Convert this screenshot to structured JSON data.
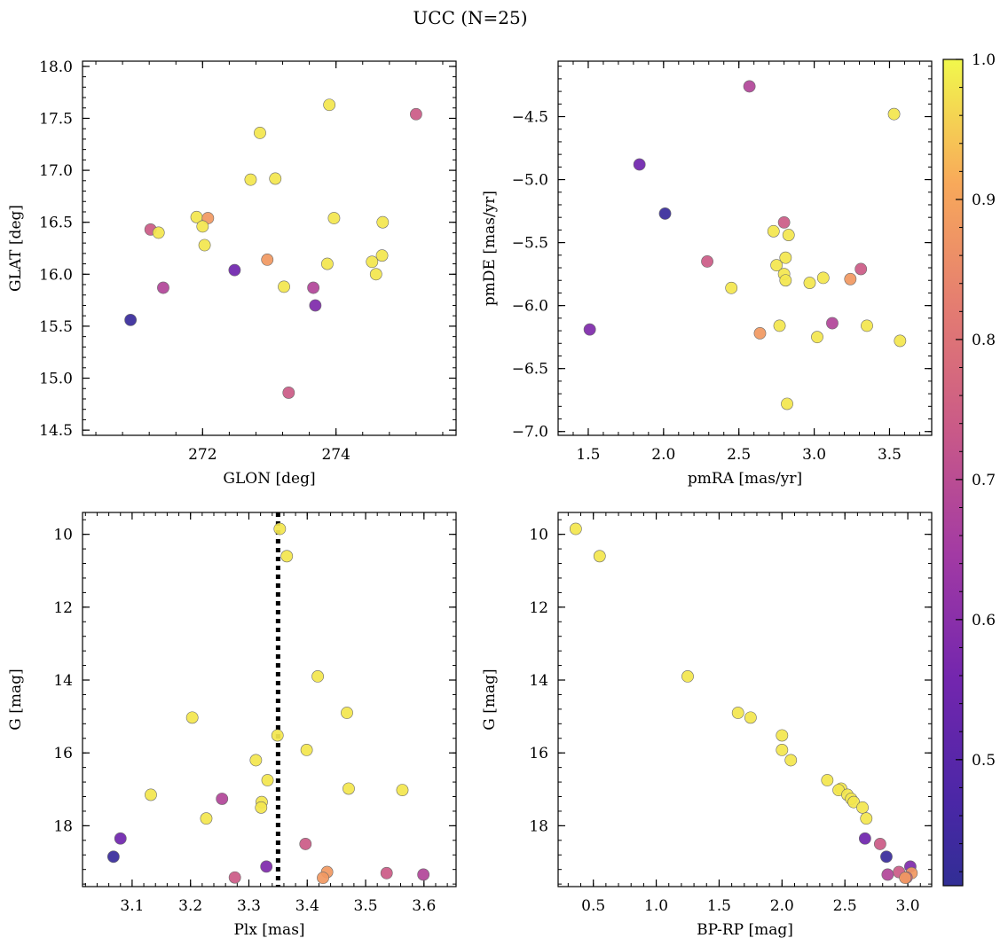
{
  "figure": {
    "title": "UCC (N=25)"
  },
  "colorbar": {
    "min": 0.41,
    "max": 1.0,
    "ticks": [
      0.5,
      0.6,
      0.7,
      0.8,
      0.9,
      1.0
    ],
    "tick_labels": [
      "0.5",
      "0.6",
      "0.7",
      "0.8",
      "0.9",
      "1.0"
    ],
    "colormap": "plasma"
  },
  "chart_data": [
    {
      "type": "scatter",
      "panel": "top-left",
      "xlabel": "GLON [deg]",
      "ylabel": "GLAT [deg]",
      "xlim": [
        270.2,
        275.8
      ],
      "ylim": [
        14.45,
        18.05
      ],
      "xticks": [
        272,
        274
      ],
      "xtick_labels": [
        "272",
        "274"
      ],
      "yticks": [
        14.5,
        15.0,
        15.5,
        16.0,
        16.5,
        17.0,
        17.5,
        18.0
      ],
      "ytick_labels": [
        "14.5",
        "15.0",
        "15.5",
        "16.0",
        "16.5",
        "17.0",
        "17.5",
        "18.0"
      ],
      "points": [
        {
          "x": 273.9,
          "y": 17.63,
          "c": 0.98
        },
        {
          "x": 275.2,
          "y": 17.54,
          "c": 0.74
        },
        {
          "x": 272.86,
          "y": 17.36,
          "c": 0.98
        },
        {
          "x": 272.72,
          "y": 16.91,
          "c": 0.98
        },
        {
          "x": 273.09,
          "y": 16.92,
          "c": 0.98
        },
        {
          "x": 271.91,
          "y": 16.55,
          "c": 0.98
        },
        {
          "x": 272.08,
          "y": 16.54,
          "c": 0.88
        },
        {
          "x": 273.97,
          "y": 16.54,
          "c": 0.98
        },
        {
          "x": 274.7,
          "y": 16.5,
          "c": 0.98
        },
        {
          "x": 272.0,
          "y": 16.46,
          "c": 0.98
        },
        {
          "x": 271.22,
          "y": 16.43,
          "c": 0.74
        },
        {
          "x": 271.34,
          "y": 16.4,
          "c": 0.98
        },
        {
          "x": 272.03,
          "y": 16.28,
          "c": 0.98
        },
        {
          "x": 274.69,
          "y": 16.18,
          "c": 0.98
        },
        {
          "x": 272.97,
          "y": 16.14,
          "c": 0.88
        },
        {
          "x": 274.54,
          "y": 16.12,
          "c": 0.98
        },
        {
          "x": 273.87,
          "y": 16.1,
          "c": 0.98
        },
        {
          "x": 272.48,
          "y": 16.04,
          "c": 0.55
        },
        {
          "x": 274.6,
          "y": 16.0,
          "c": 0.98
        },
        {
          "x": 273.22,
          "y": 15.88,
          "c": 0.98
        },
        {
          "x": 271.41,
          "y": 15.87,
          "c": 0.68
        },
        {
          "x": 273.66,
          "y": 15.87,
          "c": 0.68
        },
        {
          "x": 273.69,
          "y": 15.7,
          "c": 0.58
        },
        {
          "x": 270.92,
          "y": 15.56,
          "c": 0.43
        },
        {
          "x": 273.29,
          "y": 14.86,
          "c": 0.74
        }
      ]
    },
    {
      "type": "scatter",
      "panel": "top-right",
      "xlabel": "pmRA [mas/yr]",
      "ylabel": "pmDE [mas/yr]",
      "xlim": [
        1.3,
        3.78
      ],
      "ylim": [
        -7.03,
        -4.06
      ],
      "xticks": [
        1.5,
        2.0,
        2.5,
        3.0,
        3.5
      ],
      "xtick_labels": [
        "1.5",
        "2.0",
        "2.5",
        "3.0",
        "3.5"
      ],
      "yticks": [
        -7.0,
        -6.5,
        -6.0,
        -5.5,
        -5.0,
        -4.5
      ],
      "ytick_labels": [
        "−7.0",
        "−6.5",
        "−6.0",
        "−5.5",
        "−5.0",
        "−4.5"
      ],
      "points": [
        {
          "x": 2.57,
          "y": -4.26,
          "c": 0.68
        },
        {
          "x": 3.53,
          "y": -4.48,
          "c": 0.98
        },
        {
          "x": 1.84,
          "y": -4.88,
          "c": 0.55
        },
        {
          "x": 2.01,
          "y": -5.27,
          "c": 0.43
        },
        {
          "x": 2.8,
          "y": -5.34,
          "c": 0.74
        },
        {
          "x": 2.73,
          "y": -5.41,
          "c": 0.98
        },
        {
          "x": 2.83,
          "y": -5.44,
          "c": 0.98
        },
        {
          "x": 2.81,
          "y": -5.62,
          "c": 0.98
        },
        {
          "x": 2.29,
          "y": -5.65,
          "c": 0.74
        },
        {
          "x": 2.75,
          "y": -5.68,
          "c": 0.98
        },
        {
          "x": 3.31,
          "y": -5.71,
          "c": 0.74
        },
        {
          "x": 2.8,
          "y": -5.75,
          "c": 0.98
        },
        {
          "x": 3.06,
          "y": -5.78,
          "c": 0.98
        },
        {
          "x": 3.24,
          "y": -5.79,
          "c": 0.88
        },
        {
          "x": 2.81,
          "y": -5.8,
          "c": 0.98
        },
        {
          "x": 2.97,
          "y": -5.82,
          "c": 0.98
        },
        {
          "x": 2.45,
          "y": -5.86,
          "c": 0.98
        },
        {
          "x": 3.12,
          "y": -6.14,
          "c": 0.68
        },
        {
          "x": 2.77,
          "y": -6.16,
          "c": 0.98
        },
        {
          "x": 3.35,
          "y": -6.16,
          "c": 0.98
        },
        {
          "x": 1.51,
          "y": -6.19,
          "c": 0.58
        },
        {
          "x": 2.64,
          "y": -6.22,
          "c": 0.88
        },
        {
          "x": 3.02,
          "y": -6.25,
          "c": 0.98
        },
        {
          "x": 3.57,
          "y": -6.28,
          "c": 0.98
        },
        {
          "x": 2.82,
          "y": -6.78,
          "c": 0.98
        }
      ]
    },
    {
      "type": "scatter",
      "panel": "bottom-left",
      "xlabel": "Plx [mas]",
      "ylabel": "G [mag]",
      "xlim": [
        3.015,
        3.655
      ],
      "ylim": [
        19.67,
        9.4
      ],
      "y_inverted": true,
      "xticks": [
        3.1,
        3.2,
        3.3,
        3.4,
        3.5,
        3.6
      ],
      "xtick_labels": [
        "3.1",
        "3.2",
        "3.3",
        "3.4",
        "3.5",
        "3.6"
      ],
      "yticks": [
        10,
        12,
        14,
        16,
        18
      ],
      "ytick_labels": [
        "10",
        "12",
        "14",
        "16",
        "18"
      ],
      "vline": {
        "x": 3.35,
        "style": "dotted"
      },
      "points": [
        {
          "x": 3.353,
          "y": 9.85,
          "c": 0.98
        },
        {
          "x": 3.365,
          "y": 10.6,
          "c": 0.98
        },
        {
          "x": 3.418,
          "y": 13.9,
          "c": 0.98
        },
        {
          "x": 3.468,
          "y": 14.9,
          "c": 0.98
        },
        {
          "x": 3.203,
          "y": 15.03,
          "c": 0.98
        },
        {
          "x": 3.349,
          "y": 15.52,
          "c": 0.98
        },
        {
          "x": 3.399,
          "y": 15.92,
          "c": 0.98
        },
        {
          "x": 3.312,
          "y": 16.2,
          "c": 0.98
        },
        {
          "x": 3.332,
          "y": 16.75,
          "c": 0.98
        },
        {
          "x": 3.471,
          "y": 16.98,
          "c": 0.98
        },
        {
          "x": 3.563,
          "y": 17.02,
          "c": 0.98
        },
        {
          "x": 3.132,
          "y": 17.15,
          "c": 0.98
        },
        {
          "x": 3.254,
          "y": 17.26,
          "c": 0.68
        },
        {
          "x": 3.322,
          "y": 17.35,
          "c": 0.98
        },
        {
          "x": 3.321,
          "y": 17.5,
          "c": 0.98
        },
        {
          "x": 3.227,
          "y": 17.8,
          "c": 0.98
        },
        {
          "x": 3.08,
          "y": 18.35,
          "c": 0.55
        },
        {
          "x": 3.397,
          "y": 18.5,
          "c": 0.74
        },
        {
          "x": 3.068,
          "y": 18.85,
          "c": 0.43
        },
        {
          "x": 3.33,
          "y": 19.12,
          "c": 0.58
        },
        {
          "x": 3.434,
          "y": 19.27,
          "c": 0.88
        },
        {
          "x": 3.536,
          "y": 19.3,
          "c": 0.74
        },
        {
          "x": 3.599,
          "y": 19.34,
          "c": 0.68
        },
        {
          "x": 3.276,
          "y": 19.42,
          "c": 0.74
        },
        {
          "x": 3.427,
          "y": 19.43,
          "c": 0.88
        }
      ]
    },
    {
      "type": "scatter",
      "panel": "bottom-right",
      "xlabel": "BP-RP [mag]",
      "ylabel": "G [mag]",
      "xlim": [
        0.22,
        3.19
      ],
      "ylim": [
        19.67,
        9.4
      ],
      "y_inverted": true,
      "xticks": [
        0.5,
        1.0,
        1.5,
        2.0,
        2.5,
        3.0
      ],
      "xtick_labels": [
        "0.5",
        "1.0",
        "1.5",
        "2.0",
        "2.5",
        "3.0"
      ],
      "yticks": [
        10,
        12,
        14,
        16,
        18
      ],
      "ytick_labels": [
        "10",
        "12",
        "14",
        "16",
        "18"
      ],
      "points": [
        {
          "x": 0.36,
          "y": 9.85,
          "c": 0.98
        },
        {
          "x": 0.55,
          "y": 10.6,
          "c": 0.98
        },
        {
          "x": 1.25,
          "y": 13.9,
          "c": 0.98
        },
        {
          "x": 1.65,
          "y": 14.9,
          "c": 0.98
        },
        {
          "x": 1.75,
          "y": 15.03,
          "c": 0.98
        },
        {
          "x": 2.0,
          "y": 15.52,
          "c": 0.98
        },
        {
          "x": 2.0,
          "y": 15.92,
          "c": 0.98
        },
        {
          "x": 2.07,
          "y": 16.2,
          "c": 0.98
        },
        {
          "x": 2.36,
          "y": 16.75,
          "c": 0.98
        },
        {
          "x": 2.47,
          "y": 16.98,
          "c": 0.98
        },
        {
          "x": 2.45,
          "y": 17.02,
          "c": 0.98
        },
        {
          "x": 2.52,
          "y": 17.15,
          "c": 0.98
        },
        {
          "x": 2.55,
          "y": 17.26,
          "c": 0.98
        },
        {
          "x": 2.57,
          "y": 17.35,
          "c": 0.98
        },
        {
          "x": 2.64,
          "y": 17.5,
          "c": 0.98
        },
        {
          "x": 2.67,
          "y": 17.8,
          "c": 0.98
        },
        {
          "x": 2.66,
          "y": 18.35,
          "c": 0.55
        },
        {
          "x": 2.78,
          "y": 18.5,
          "c": 0.74
        },
        {
          "x": 2.83,
          "y": 18.85,
          "c": 0.43
        },
        {
          "x": 3.02,
          "y": 19.12,
          "c": 0.58
        },
        {
          "x": 2.93,
          "y": 19.27,
          "c": 0.74
        },
        {
          "x": 3.03,
          "y": 19.3,
          "c": 0.88
        },
        {
          "x": 2.84,
          "y": 19.34,
          "c": 0.68
        },
        {
          "x": 2.99,
          "y": 19.42,
          "c": 0.74
        },
        {
          "x": 2.98,
          "y": 19.43,
          "c": 0.88
        }
      ]
    }
  ]
}
